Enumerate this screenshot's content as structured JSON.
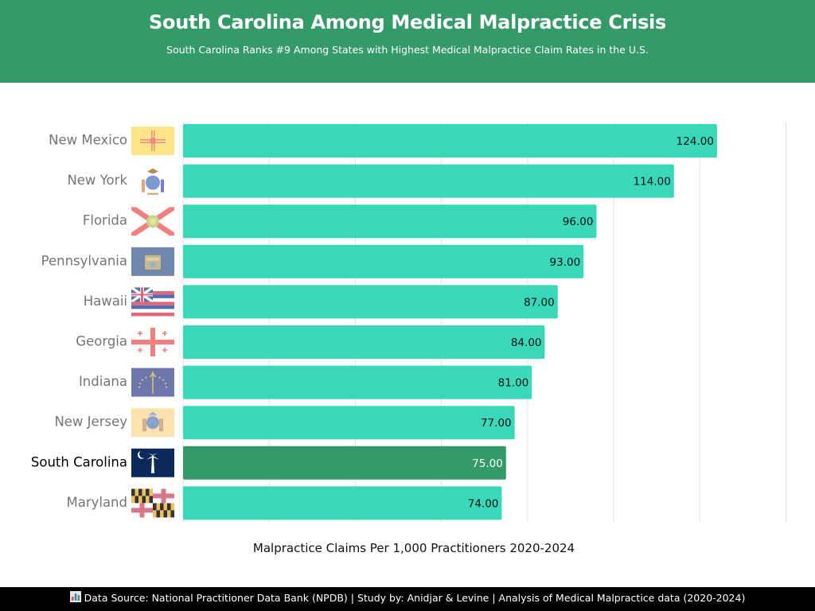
{
  "header": {
    "title": "South Carolina Among Medical Malpractice Crisis",
    "subtitle": "South Carolina Ranks #9 Among States with Highest Medical Malpractice Claim Rates in the U.S."
  },
  "colors": {
    "header_bg": "#349a68",
    "bar": "#38d8b8",
    "highlight_bar": "#349a68",
    "footer_bg": "#000000"
  },
  "chart_data": {
    "type": "bar",
    "orientation": "horizontal",
    "xlabel": "Malpractice Claims Per 1,000 Practitioners 2020-2024",
    "xlim": [
      0,
      140
    ],
    "grid": true,
    "highlight": "South Carolina",
    "categories": [
      "New Mexico",
      "New York",
      "Florida",
      "Pennsylvania",
      "Hawaii",
      "Georgia",
      "Indiana",
      "New Jersey",
      "South Carolina",
      "Maryland"
    ],
    "values": [
      124,
      114,
      96,
      93,
      87,
      84,
      81,
      77,
      75,
      74
    ],
    "value_labels": [
      "124.00",
      "114.00",
      "96.00",
      "93.00",
      "87.00",
      "84.00",
      "81.00",
      "77.00",
      "75.00",
      "74.00"
    ],
    "flag_icons": [
      "new-mexico-flag-icon",
      "new-york-flag-icon",
      "florida-flag-icon",
      "pennsylvania-flag-icon",
      "hawaii-flag-icon",
      "georgia-flag-icon",
      "indiana-flag-icon",
      "new-jersey-flag-icon",
      "south-carolina-flag-icon",
      "maryland-flag-icon"
    ]
  },
  "footer": {
    "icon": "bar-chart-icon",
    "text": "Data Source: National Practitioner Data Bank (NPDB) | Study by: Anidjar & Levine | Analysis of Medical Malpractice data (2020-2024)"
  }
}
